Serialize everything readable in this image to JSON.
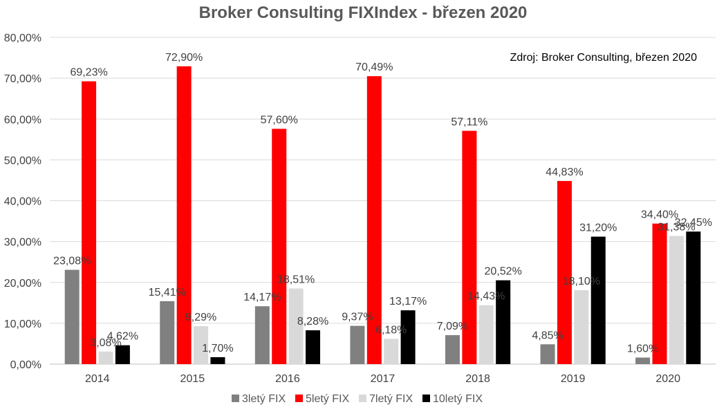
{
  "chart_data": {
    "type": "bar",
    "title": "Broker Consulting FIXIndex - březen 2020",
    "annotation": "Zdroj: Broker Consulting, březen 2020",
    "categories": [
      "2014",
      "2015",
      "2016",
      "2017",
      "2018",
      "2019",
      "2020"
    ],
    "ylim": [
      0,
      80
    ],
    "yticks": [
      "0,00%",
      "10,00%",
      "20,00%",
      "30,00%",
      "40,00%",
      "50,00%",
      "60,00%",
      "70,00%",
      "80,00%"
    ],
    "grid": true,
    "legend_position": "bottom",
    "series": [
      {
        "name": "3letý FIX",
        "color": "#808080",
        "values": [
          23.08,
          15.41,
          14.17,
          9.37,
          7.09,
          4.85,
          1.6
        ],
        "labels": [
          "23,08%",
          "15,41%",
          "14,17%",
          "9,37%",
          "7,09%",
          "4,85%",
          "1,60%"
        ]
      },
      {
        "name": "5letý FIX",
        "color": "#ff0000",
        "values": [
          69.23,
          72.9,
          57.6,
          70.49,
          57.11,
          44.83,
          34.4
        ],
        "labels": [
          "69,23%",
          "72,90%",
          "57,60%",
          "70,49%",
          "57,11%",
          "44,83%",
          "34,40%"
        ]
      },
      {
        "name": "7letý FIX",
        "color": "#d9d9d9",
        "values": [
          3.08,
          9.29,
          18.51,
          6.18,
          14.43,
          18.1,
          31.38
        ],
        "labels": [
          "3,08%",
          "9,29%",
          "18,51%",
          "6,18%",
          "14,43%",
          "18,10%",
          "31,38%"
        ]
      },
      {
        "name": "10letý FIX",
        "color": "#000000",
        "values": [
          4.62,
          1.7,
          8.28,
          13.17,
          20.52,
          31.2,
          32.45
        ],
        "labels": [
          "4,62%",
          "1,70%",
          "8,28%",
          "13,17%",
          "20,52%",
          "31,20%",
          "32,45%"
        ]
      }
    ]
  }
}
